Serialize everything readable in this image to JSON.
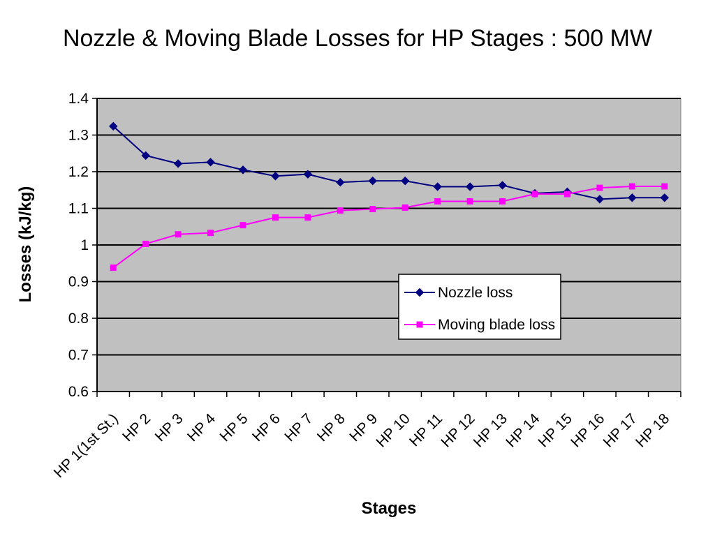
{
  "chart_data": {
    "type": "line",
    "title": "Nozzle & Moving Blade Losses for HP Stages : 500  MW",
    "xlabel": "Stages",
    "ylabel": "Losses (kJ/kg)",
    "ylim": [
      0.6,
      1.4
    ],
    "yticks": [
      "0.6",
      "0.7",
      "0.8",
      "0.9",
      "1",
      "1.1",
      "1.2",
      "1.3",
      "1.4"
    ],
    "ytick_values": [
      0.6,
      0.7,
      0.8,
      0.9,
      1.0,
      1.1,
      1.2,
      1.3,
      1.4
    ],
    "grid": true,
    "legend_position": "center-right",
    "plot_background": "#c0c0c0",
    "categories": [
      "HP 1(1st St.)",
      "HP 2",
      "HP 3",
      "HP 4",
      "HP 5",
      "HP 6",
      "HP 7",
      "HP 8",
      "HP 9",
      "HP 10",
      "HP 11",
      "HP 12",
      "HP 13",
      "HP 14",
      "HP 15",
      "HP 16",
      "HP 17",
      "HP 18"
    ],
    "series": [
      {
        "name": "Nozzle loss",
        "color": "#000080",
        "marker": "diamond",
        "values": [
          1.324,
          1.244,
          1.222,
          1.226,
          1.205,
          1.188,
          1.193,
          1.171,
          1.175,
          1.175,
          1.159,
          1.159,
          1.163,
          1.141,
          1.145,
          1.125,
          1.129,
          1.129
        ]
      },
      {
        "name": "Moving blade loss",
        "color": "#ff00ff",
        "marker": "square",
        "values": [
          0.938,
          1.003,
          1.029,
          1.033,
          1.054,
          1.075,
          1.075,
          1.094,
          1.098,
          1.102,
          1.119,
          1.119,
          1.119,
          1.139,
          1.139,
          1.156,
          1.16,
          1.16
        ]
      }
    ]
  }
}
